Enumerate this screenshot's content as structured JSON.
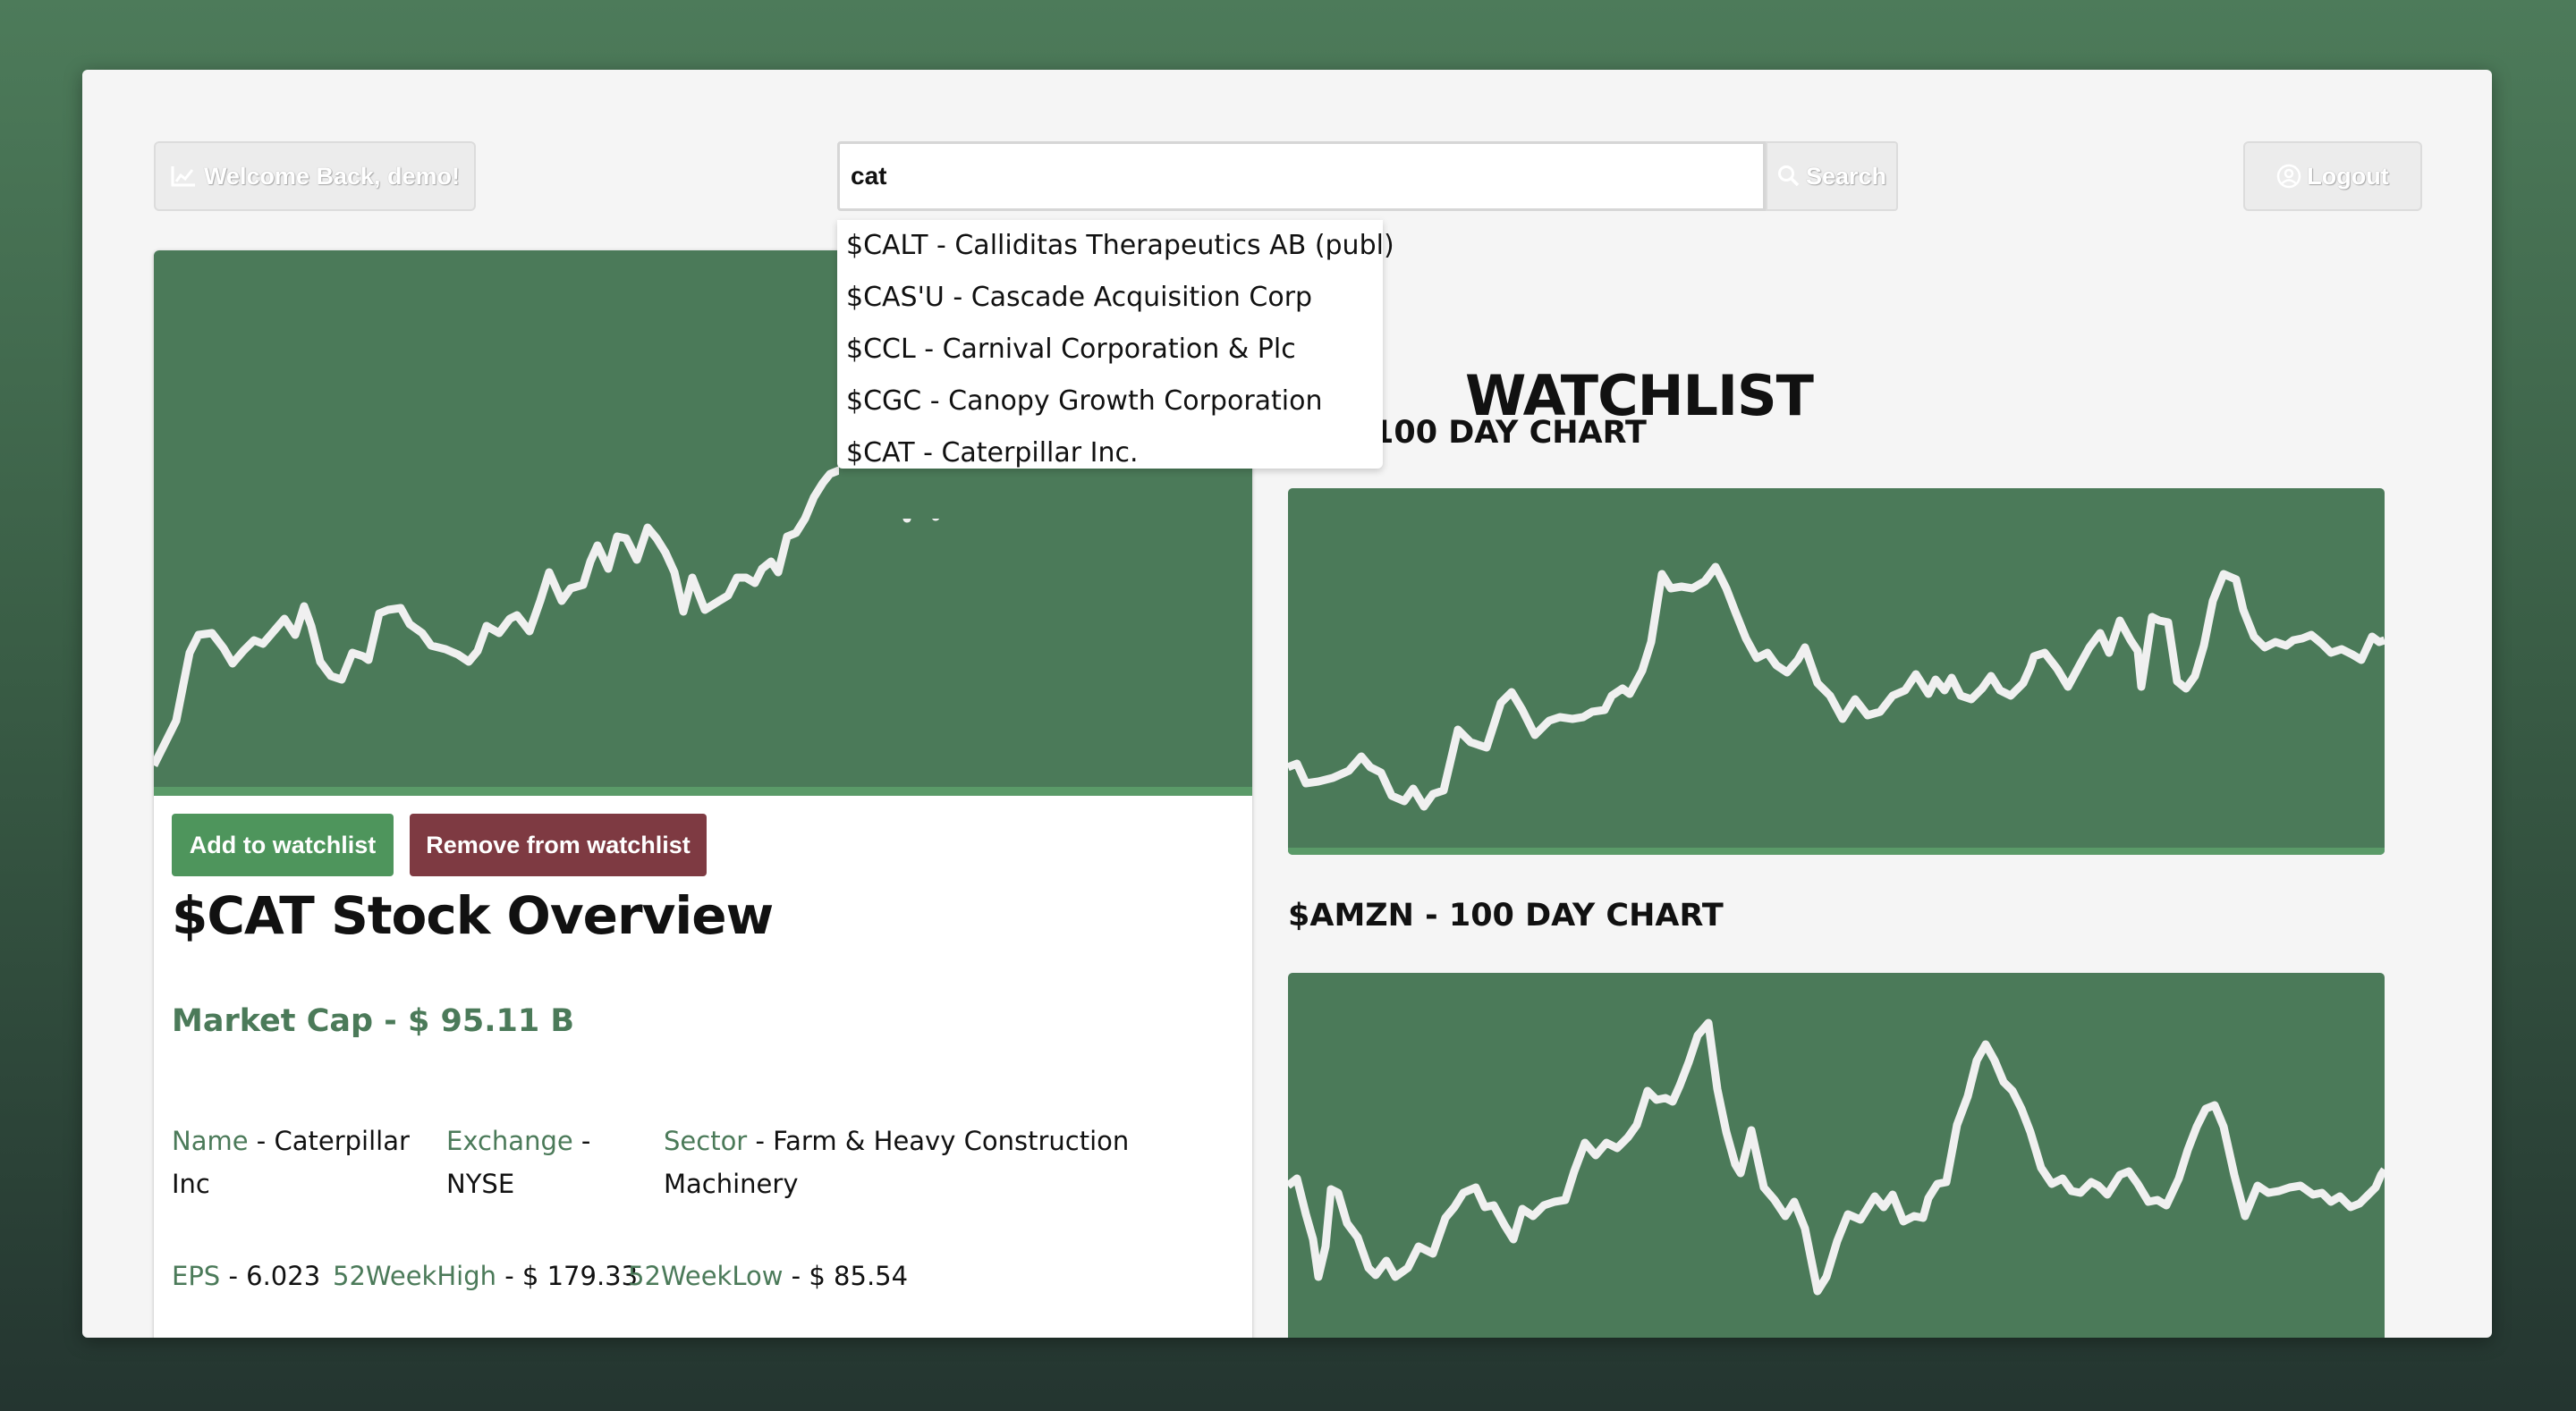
{
  "header": {
    "welcome_label": "Welcome Back, demo!",
    "search_value": "cat",
    "search_button_label": "Search",
    "logout_label": "Logout"
  },
  "search_suggestions": [
    "$CALT - Calliditas Therapeutics AB (publ)",
    "$CAS'U - Cascade Acquisition Corp",
    "$CCL - Carnival Corporation & Plc",
    "$CGC - Canopy Growth Corporation",
    "$CAT - Caterpillar Inc."
  ],
  "stock": {
    "add_label": "Add to watchlist",
    "remove_label": "Remove from watchlist",
    "title": "$CAT Stock Overview",
    "market_cap": "Market Cap - $ 95.11 B",
    "name_key": "Name",
    "name_value": " - Caterpillar Inc",
    "exchange_key": "Exchange",
    "exchange_value": " - NYSE",
    "sector_key": "Sector",
    "sector_value": " - Farm & Heavy Construction Machinery",
    "eps_key": "EPS",
    "eps_value": " - 6.023",
    "high_key": "52WeekHigh",
    "high_value": " - $ 179.33",
    "low_key": "52WeekLow",
    "low_value": " - $ 85.54"
  },
  "watchlist": {
    "title": "WATCHLIST",
    "chart1_label": "100 DAY CHART",
    "chart2_label": "$AMZN - 100 DAY CHART"
  },
  "colors": {
    "chart_bg": "#4b7a59",
    "line": "#f0f0f0",
    "add_button": "#4e955c",
    "remove_button": "#7e3a42",
    "accent_text": "#4b7a59"
  }
}
